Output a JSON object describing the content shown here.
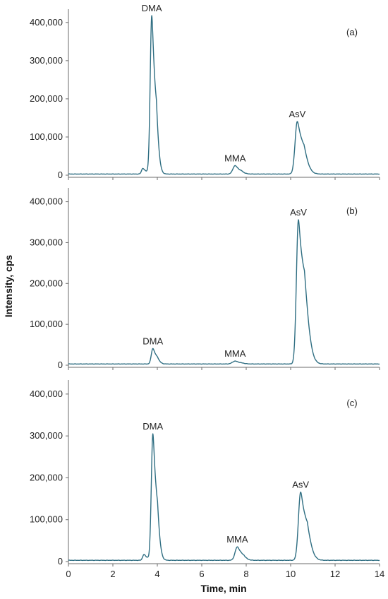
{
  "chart_data": {
    "type": "line",
    "xlabel": "Time, min",
    "ylabel": "Intensity, cps",
    "xlim": [
      0,
      14
    ],
    "ylim": [
      0,
      420000
    ],
    "x_ticks": [
      0,
      2,
      4,
      6,
      8,
      10,
      12,
      14
    ],
    "y_ticks": [
      0,
      100000,
      200000,
      300000,
      400000
    ],
    "x_tick_labels": [
      "0",
      "2",
      "4",
      "6",
      "8",
      "10",
      "12",
      "14"
    ],
    "y_tick_labels": [
      "0",
      "100,000",
      "200,000",
      "300,000",
      "400,000"
    ],
    "line_color": "#2f6e82",
    "panels": [
      {
        "label": "(a)",
        "baseline": 3000,
        "peaks": [
          {
            "name": "",
            "t": 3.35,
            "height": 15000,
            "width": 0.06,
            "tail": 0.08
          },
          {
            "name": "DMA",
            "t": 3.75,
            "height": 415000,
            "width": 0.07,
            "tail": 0.1
          },
          {
            "name": "MMA",
            "t": 7.5,
            "height": 22000,
            "width": 0.1,
            "tail": 0.12
          },
          {
            "name": "AsV",
            "t": 10.3,
            "height": 138000,
            "width": 0.1,
            "tail": 0.18
          }
        ]
      },
      {
        "label": "(b)",
        "baseline": 3000,
        "peaks": [
          {
            "name": "DMA",
            "t": 3.8,
            "height": 38000,
            "width": 0.07,
            "tail": 0.1
          },
          {
            "name": "MMA",
            "t": 7.5,
            "height": 7000,
            "width": 0.12,
            "tail": 0.12
          },
          {
            "name": "AsV",
            "t": 10.35,
            "height": 353000,
            "width": 0.09,
            "tail": 0.2
          }
        ]
      },
      {
        "label": "(c)",
        "baseline": 3000,
        "peaks": [
          {
            "name": "",
            "t": 3.4,
            "height": 14000,
            "width": 0.06,
            "tail": 0.08
          },
          {
            "name": "DMA",
            "t": 3.8,
            "height": 302000,
            "width": 0.07,
            "tail": 0.1
          },
          {
            "name": "MMA",
            "t": 7.6,
            "height": 32000,
            "width": 0.1,
            "tail": 0.12
          },
          {
            "name": "AsV",
            "t": 10.45,
            "height": 163000,
            "width": 0.1,
            "tail": 0.18
          }
        ]
      }
    ]
  }
}
